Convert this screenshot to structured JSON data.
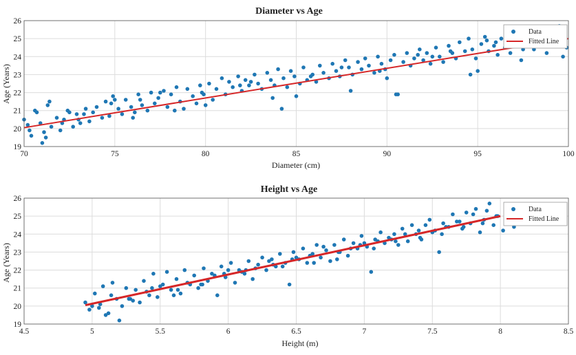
{
  "chart_data": [
    {
      "type": "scatter",
      "title": "Diameter vs Age",
      "xlabel": "Diameter (cm)",
      "ylabel": "Age (Years)",
      "xlim": [
        70,
        100
      ],
      "ylim": [
        19,
        26
      ],
      "xticks": [
        70,
        75,
        80,
        85,
        90,
        95,
        100
      ],
      "yticks": [
        19,
        20,
        21,
        22,
        23,
        24,
        25,
        26
      ],
      "grid": true,
      "legend": {
        "position": "top-right",
        "entries": [
          "Data",
          "Fitted Line"
        ]
      },
      "colors": {
        "data": "#1f77b4",
        "fit": "#d62728"
      },
      "fitted_line": {
        "x": [
          70,
          100
        ],
        "y": [
          20.05,
          25.0
        ]
      },
      "series": [
        {
          "name": "Data",
          "x": [
            70.0,
            70.2,
            70.4,
            70.6,
            70.9,
            71.1,
            71.3,
            71.5,
            71.8,
            72.0,
            72.2,
            72.4,
            72.7,
            72.9,
            73.1,
            73.4,
            73.6,
            73.8,
            74.0,
            74.3,
            74.5,
            74.7,
            74.9,
            75.2,
            75.4,
            75.6,
            75.9,
            76.1,
            76.3,
            76.5,
            76.8,
            77.0,
            77.2,
            77.4,
            77.7,
            77.9,
            78.1,
            78.4,
            78.6,
            78.8,
            79.0,
            79.3,
            79.5,
            79.7,
            79.9,
            80.2,
            80.4,
            80.6,
            80.9,
            81.1,
            81.3,
            81.5,
            81.8,
            82.0,
            82.2,
            82.4,
            82.7,
            82.9,
            83.1,
            83.4,
            83.6,
            83.8,
            84.0,
            84.3,
            84.5,
            84.7,
            84.9,
            85.2,
            85.4,
            85.6,
            85.9,
            86.1,
            86.3,
            86.5,
            86.8,
            87.0,
            87.2,
            87.4,
            87.7,
            87.9,
            88.1,
            88.4,
            88.6,
            88.8,
            89.0,
            89.3,
            89.5,
            89.7,
            89.9,
            90.2,
            90.4,
            90.6,
            90.9,
            91.1,
            91.3,
            91.5,
            91.8,
            92.0,
            92.2,
            92.4,
            92.7,
            92.9,
            93.1,
            93.4,
            93.6,
            93.8,
            94.0,
            94.3,
            94.5,
            94.7,
            94.9,
            95.2,
            95.4,
            95.6,
            95.9,
            96.1,
            96.3,
            96.5,
            96.8,
            97.0,
            97.2,
            97.4,
            97.7,
            97.9,
            98.1,
            98.4,
            98.6,
            98.8,
            99.0,
            99.3,
            99.5,
            99.7,
            99.9,
            70.3,
            71.0,
            72.5,
            75.0,
            77.5,
            80.0,
            82.5,
            85.0,
            87.5,
            90.0,
            92.5,
            95.0,
            97.5,
            70.7,
            71.4,
            72.1,
            73.3,
            74.8,
            76.4,
            78.3,
            79.8,
            81.9,
            83.7,
            85.8,
            88.0,
            89.6,
            91.7,
            93.5,
            95.5,
            97.3,
            99.1,
            71.2,
            73.0,
            76.0,
            84.2,
            90.5,
            94.6,
            96.0,
            98.9
          ],
          "y": [
            20.5,
            20.2,
            19.6,
            21.0,
            20.3,
            19.8,
            21.3,
            20.1,
            20.6,
            19.9,
            20.5,
            21.0,
            20.1,
            20.8,
            20.3,
            21.1,
            20.4,
            20.9,
            21.2,
            20.6,
            21.5,
            20.7,
            21.8,
            21.1,
            20.8,
            21.6,
            21.2,
            20.9,
            21.9,
            21.3,
            21.0,
            22.0,
            21.4,
            21.7,
            22.1,
            21.2,
            21.9,
            22.3,
            21.5,
            21.1,
            22.2,
            21.8,
            21.4,
            22.4,
            21.9,
            22.5,
            21.6,
            22.2,
            22.8,
            21.9,
            22.6,
            22.3,
            22.9,
            22.1,
            22.7,
            22.4,
            23.0,
            22.5,
            22.2,
            23.1,
            22.7,
            22.4,
            23.3,
            22.8,
            22.3,
            23.2,
            22.9,
            22.5,
            23.4,
            22.7,
            23.0,
            22.6,
            23.5,
            23.1,
            22.8,
            23.6,
            23.2,
            22.9,
            23.8,
            23.4,
            23.0,
            23.7,
            23.3,
            23.9,
            23.5,
            23.1,
            24.0,
            23.6,
            23.3,
            23.8,
            24.1,
            21.9,
            23.7,
            24.2,
            23.5,
            23.9,
            24.4,
            23.8,
            24.2,
            23.6,
            24.5,
            24.0,
            23.7,
            24.6,
            24.2,
            23.9,
            24.8,
            24.3,
            25.0,
            24.4,
            23.9,
            24.7,
            25.1,
            24.3,
            24.6,
            24.1,
            25.0,
            24.5,
            24.2,
            25.3,
            24.6,
            23.8,
            24.9,
            25.4,
            24.4,
            24.8,
            25.6,
            24.2,
            25.2,
            24.7,
            25.7,
            24.0,
            24.5,
            19.9,
            19.2,
            20.9,
            21.6,
            22.0,
            21.3,
            22.6,
            21.8,
            23.4,
            22.8,
            24.0,
            23.2,
            24.4,
            20.9,
            21.5,
            20.3,
            20.8,
            21.4,
            21.6,
            21.0,
            22.0,
            22.4,
            21.7,
            22.9,
            22.1,
            23.2,
            24.1,
            24.3,
            24.9,
            25.1,
            25.5,
            19.5,
            20.5,
            20.6,
            21.1,
            21.9,
            23.0,
            24.8,
            24.6
          ]
        }
      ]
    },
    {
      "type": "scatter",
      "title": "Height vs Age",
      "xlabel": "Height (m)",
      "ylabel": "Age (Years)",
      "xlim": [
        4.5,
        8.5
      ],
      "ylim": [
        19,
        26
      ],
      "xticks": [
        4.5,
        5,
        5.5,
        6,
        6.5,
        7,
        7.5,
        8,
        8.5
      ],
      "yticks": [
        19,
        20,
        21,
        22,
        23,
        24,
        25,
        26
      ],
      "grid": true,
      "legend": {
        "position": "top-right",
        "entries": [
          "Data",
          "Fitted Line"
        ]
      },
      "colors": {
        "data": "#1f77b4",
        "fit": "#d62728"
      },
      "fitted_line": {
        "x": [
          4.95,
          8.0
        ],
        "y": [
          20.05,
          25.0
        ]
      },
      "series": [
        {
          "name": "Data",
          "x": [
            4.95,
            4.98,
            5.02,
            5.05,
            5.08,
            5.12,
            5.15,
            5.18,
            5.22,
            5.25,
            5.28,
            5.32,
            5.35,
            5.38,
            5.42,
            5.45,
            5.48,
            5.52,
            5.55,
            5.58,
            5.62,
            5.65,
            5.68,
            5.72,
            5.75,
            5.78,
            5.82,
            5.85,
            5.88,
            5.92,
            5.95,
            5.98,
            6.02,
            6.05,
            6.08,
            6.12,
            6.15,
            6.18,
            6.22,
            6.25,
            6.28,
            6.32,
            6.35,
            6.38,
            6.42,
            6.45,
            6.48,
            6.52,
            6.55,
            6.58,
            6.62,
            6.65,
            6.68,
            6.72,
            6.75,
            6.78,
            6.82,
            6.85,
            6.88,
            6.92,
            6.95,
            6.98,
            7.02,
            7.05,
            7.08,
            7.12,
            7.15,
            7.18,
            7.22,
            7.25,
            7.28,
            7.32,
            7.35,
            7.38,
            7.42,
            7.45,
            7.48,
            7.52,
            7.55,
            7.58,
            7.62,
            7.65,
            7.68,
            7.72,
            7.75,
            7.78,
            7.82,
            7.85,
            7.88,
            7.92,
            7.95,
            7.98,
            8.02,
            8.05,
            8.1,
            5.0,
            5.1,
            5.2,
            5.3,
            5.4,
            5.5,
            5.6,
            5.7,
            5.8,
            5.9,
            6.0,
            6.1,
            6.2,
            6.3,
            6.4,
            6.5,
            6.6,
            6.7,
            6.8,
            6.9,
            7.0,
            7.1,
            7.2,
            7.3,
            7.4,
            7.5,
            7.6,
            7.7,
            7.8,
            7.9,
            5.06,
            5.14,
            5.27,
            5.44,
            5.63,
            5.81,
            5.97,
            6.13,
            6.33,
            6.47,
            6.63,
            6.81,
            6.97,
            7.07,
            7.23,
            7.41,
            7.57,
            7.73,
            7.87,
            7.97
          ],
          "y": [
            20.2,
            19.8,
            20.7,
            19.9,
            21.1,
            19.6,
            21.3,
            20.4,
            20.0,
            21.0,
            20.4,
            20.9,
            20.2,
            21.4,
            20.6,
            21.8,
            20.5,
            21.2,
            21.9,
            20.9,
            21.5,
            20.7,
            22.0,
            21.2,
            21.7,
            21.0,
            22.1,
            21.4,
            21.8,
            20.6,
            22.2,
            21.6,
            22.4,
            21.3,
            22.0,
            21.8,
            22.5,
            21.5,
            22.3,
            22.7,
            22.0,
            22.6,
            22.2,
            22.9,
            22.4,
            21.2,
            23.0,
            22.6,
            23.2,
            22.4,
            22.9,
            23.4,
            22.7,
            23.1,
            22.5,
            23.4,
            23.0,
            23.7,
            22.8,
            23.5,
            23.2,
            23.9,
            23.3,
            21.9,
            23.7,
            24.1,
            23.5,
            23.8,
            24.0,
            23.4,
            24.3,
            23.6,
            24.5,
            24.0,
            23.7,
            24.5,
            24.8,
            24.2,
            23.0,
            24.6,
            24.4,
            25.1,
            24.7,
            24.3,
            25.2,
            24.6,
            25.4,
            24.1,
            24.8,
            25.7,
            24.5,
            25.0,
            24.2,
            24.9,
            24.4,
            20.0,
            19.5,
            19.2,
            20.3,
            20.8,
            21.1,
            20.6,
            21.3,
            21.2,
            21.7,
            22.0,
            21.9,
            22.1,
            22.5,
            22.2,
            22.7,
            22.8,
            23.3,
            22.6,
            23.2,
            23.5,
            23.6,
            23.7,
            24.0,
            24.2,
            24.1,
            24.4,
            24.7,
            25.1,
            25.3,
            20.1,
            20.6,
            20.4,
            21.0,
            20.9,
            21.2,
            21.8,
            22.0,
            22.3,
            22.6,
            22.4,
            23.0,
            23.4,
            23.2,
            23.6,
            23.8,
            24.0,
            24.4,
            24.6,
            25.0
          ]
        }
      ]
    }
  ]
}
